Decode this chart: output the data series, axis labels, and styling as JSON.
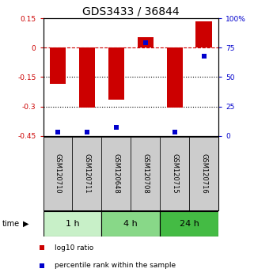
{
  "title": "GDS3433 / 36844",
  "samples": [
    "GSM120710",
    "GSM120711",
    "GSM120648",
    "GSM120708",
    "GSM120715",
    "GSM120716"
  ],
  "log10_ratio": [
    -0.185,
    -0.305,
    -0.265,
    0.055,
    -0.305,
    0.135
  ],
  "percentile_rank": [
    3,
    3,
    7,
    79,
    3,
    68
  ],
  "groups": [
    {
      "label": "1 h",
      "indices": [
        0,
        1
      ],
      "color": "#c8f0c8"
    },
    {
      "label": "4 h",
      "indices": [
        2,
        3
      ],
      "color": "#88d888"
    },
    {
      "label": "24 h",
      "indices": [
        4,
        5
      ],
      "color": "#44bb44"
    }
  ],
  "ylim": [
    -0.45,
    0.15
  ],
  "yticks_left": [
    0.15,
    0.0,
    -0.15,
    -0.3,
    -0.45
  ],
  "ytick_labels_left": [
    "0.15",
    "0",
    "-0.15",
    "-0.3",
    "-0.45"
  ],
  "yticks_right_vals": [
    0.15,
    0.0,
    -0.15,
    -0.3,
    -0.45
  ],
  "ytick_labels_right": [
    "100%",
    "75",
    "50",
    "25",
    "0"
  ],
  "bar_color": "#cc0000",
  "dot_color": "#0000cc",
  "ref_line_y": 0.0,
  "grid_lines": [
    -0.15,
    -0.3
  ],
  "legend_items": [
    {
      "color": "#cc0000",
      "label": "log10 ratio"
    },
    {
      "color": "#0000cc",
      "label": "percentile rank within the sample"
    }
  ],
  "bar_width": 0.55,
  "dot_size": 5,
  "sample_box_color": "#cccccc",
  "sample_box_edge": "#000000",
  "title_fontsize": 10,
  "tick_fontsize": 6.5,
  "label_fontsize": 6.5,
  "group_fontsize": 8,
  "sample_fontsize": 6
}
